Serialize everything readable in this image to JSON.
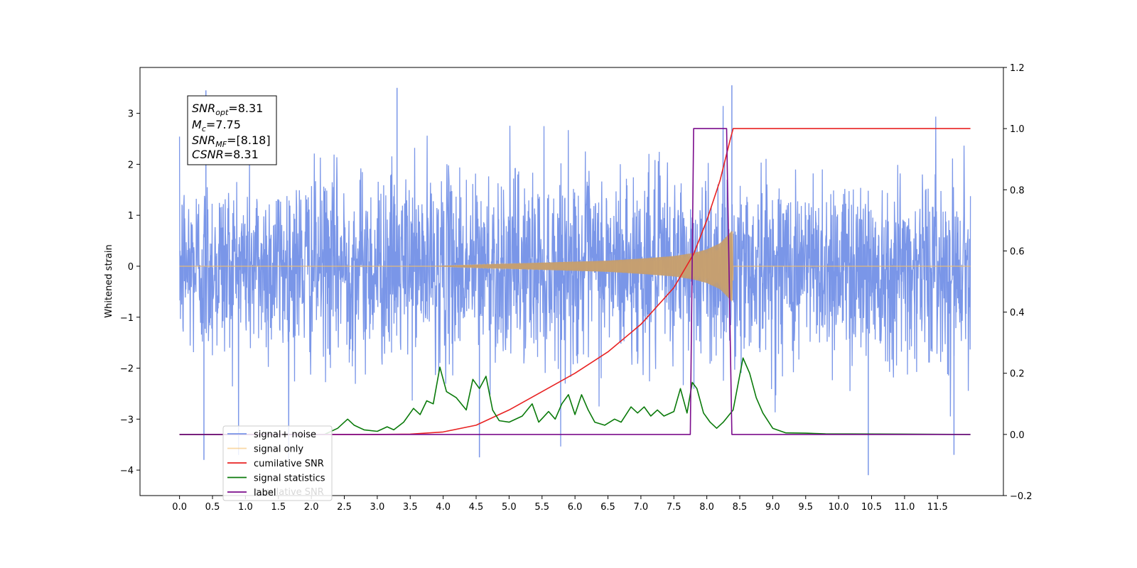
{
  "chart_data": {
    "type": "line",
    "title": "",
    "xlabel": "",
    "ylabel": "Whitened strain",
    "xlim": [
      -0.6,
      12.5
    ],
    "ylim": [
      -4.5,
      3.9
    ],
    "y2lim": [
      -0.2,
      1.2
    ],
    "x_ticks": [
      "0.0",
      "0.5",
      "1.0",
      "1.5",
      "2.0",
      "2.5",
      "3.0",
      "3.5",
      "4.0",
      "4.5",
      "5.0",
      "5.5",
      "6.0",
      "6.5",
      "7.0",
      "7.5",
      "8.0",
      "8.5",
      "9.0",
      "9.5",
      "10.0",
      "10.5",
      "11.0",
      "11.5"
    ],
    "y_ticks": [
      "3",
      "2",
      "1",
      "0",
      "−1",
      "−2",
      "−3",
      "−4"
    ],
    "y2_ticks": [
      "1.2",
      "1.0",
      "0.8",
      "0.6",
      "0.4",
      "0.2",
      "0.0",
      "−0.2"
    ],
    "grid": false,
    "legend_position": "lower-left",
    "annotation_box": {
      "snr_opt_label": "SNR",
      "snr_opt_sub": "opt",
      "snr_opt_value": "=8.31",
      "mc_label": "M",
      "mc_sub": "c",
      "mc_value": "=7.75",
      "snr_mf_label": "SNR",
      "snr_mf_sub": "MF",
      "snr_mf_value": "=[8.18]",
      "csnr_label": "CSNR",
      "csnr_value": "=8.31"
    },
    "series": [
      {
        "name": "signal+ noise",
        "axis": "left",
        "color": "#7a96e8",
        "description": "whitened noisy strain from 0 to 12 s, mostly between -2.5 and 2.5 with spikes to about 3.5 and -4.1",
        "x_range": [
          0.0,
          12.0
        ],
        "typical_range": [
          -2.2,
          2.2
        ],
        "peaks": [
          {
            "x": 0.4,
            "y": 3.45
          },
          {
            "x": 3.3,
            "y": 3.5
          },
          {
            "x": 8.38,
            "y": 3.55
          },
          {
            "x": 0.37,
            "y": -3.8
          },
          {
            "x": 4.55,
            "y": -3.75
          },
          {
            "x": 10.45,
            "y": -4.1
          },
          {
            "x": 11.75,
            "y": -3.7
          }
        ]
      },
      {
        "name": "signal only",
        "axis": "left",
        "color": "#f5be68",
        "description": "chirp signal growing from ~0 near 4 s to about ±0.75 at 8.4 s, then ending",
        "x_start": 3.8,
        "x_end": 8.4,
        "amplitude_x": [
          3.8,
          4.5,
          5.0,
          5.5,
          6.0,
          6.5,
          7.0,
          7.5,
          7.8,
          8.0,
          8.2,
          8.35,
          8.4
        ],
        "amplitude_y": [
          0.0,
          0.03,
          0.05,
          0.07,
          0.09,
          0.11,
          0.15,
          0.2,
          0.26,
          0.33,
          0.45,
          0.65,
          0.75
        ]
      },
      {
        "name": "cumilative SNR",
        "axis": "right",
        "color": "#e82222",
        "x": [
          0.0,
          3.0,
          3.5,
          4.0,
          4.5,
          5.0,
          5.5,
          6.0,
          6.5,
          7.0,
          7.5,
          7.8,
          8.0,
          8.2,
          8.35,
          8.4,
          12.0
        ],
        "y": [
          0.0,
          0.0,
          0.001,
          0.008,
          0.03,
          0.08,
          0.14,
          0.2,
          0.27,
          0.36,
          0.48,
          0.59,
          0.7,
          0.83,
          0.96,
          1.0,
          1.0
        ]
      },
      {
        "name": "signal statistics",
        "axis": "right",
        "color": "#0a7a0a",
        "x": [
          0.0,
          2.2,
          2.4,
          2.55,
          2.65,
          2.8,
          3.0,
          3.15,
          3.25,
          3.4,
          3.55,
          3.65,
          3.75,
          3.85,
          3.95,
          4.05,
          4.2,
          4.35,
          4.45,
          4.55,
          4.65,
          4.75,
          4.85,
          5.0,
          5.2,
          5.35,
          5.45,
          5.6,
          5.7,
          5.8,
          5.9,
          6.0,
          6.1,
          6.2,
          6.3,
          6.45,
          6.6,
          6.7,
          6.85,
          6.95,
          7.05,
          7.15,
          7.25,
          7.35,
          7.5,
          7.6,
          7.7,
          7.78,
          7.85,
          7.95,
          8.05,
          8.15,
          8.25,
          8.4,
          8.55,
          8.65,
          8.75,
          8.85,
          9.0,
          9.2,
          9.5,
          9.8,
          12.0
        ],
        "y": [
          0.0,
          0.0,
          0.02,
          0.05,
          0.03,
          0.015,
          0.01,
          0.025,
          0.015,
          0.04,
          0.085,
          0.065,
          0.11,
          0.1,
          0.22,
          0.14,
          0.12,
          0.08,
          0.18,
          0.15,
          0.19,
          0.08,
          0.045,
          0.04,
          0.06,
          0.1,
          0.04,
          0.075,
          0.05,
          0.1,
          0.13,
          0.065,
          0.13,
          0.08,
          0.04,
          0.03,
          0.05,
          0.04,
          0.09,
          0.07,
          0.09,
          0.06,
          0.08,
          0.06,
          0.075,
          0.15,
          0.07,
          0.17,
          0.15,
          0.07,
          0.04,
          0.02,
          0.04,
          0.08,
          0.25,
          0.2,
          0.12,
          0.07,
          0.02,
          0.005,
          0.004,
          0.002,
          0.0
        ]
      },
      {
        "name": "label",
        "axis": "right",
        "color": "#7b0b8c",
        "x": [
          0.0,
          7.75,
          7.8,
          8.3,
          8.38,
          12.0
        ],
        "y": [
          0.0,
          0.0,
          1.0,
          1.0,
          0.0,
          0.0
        ]
      }
    ],
    "legend_ghost_text": "cumilative SNR"
  }
}
